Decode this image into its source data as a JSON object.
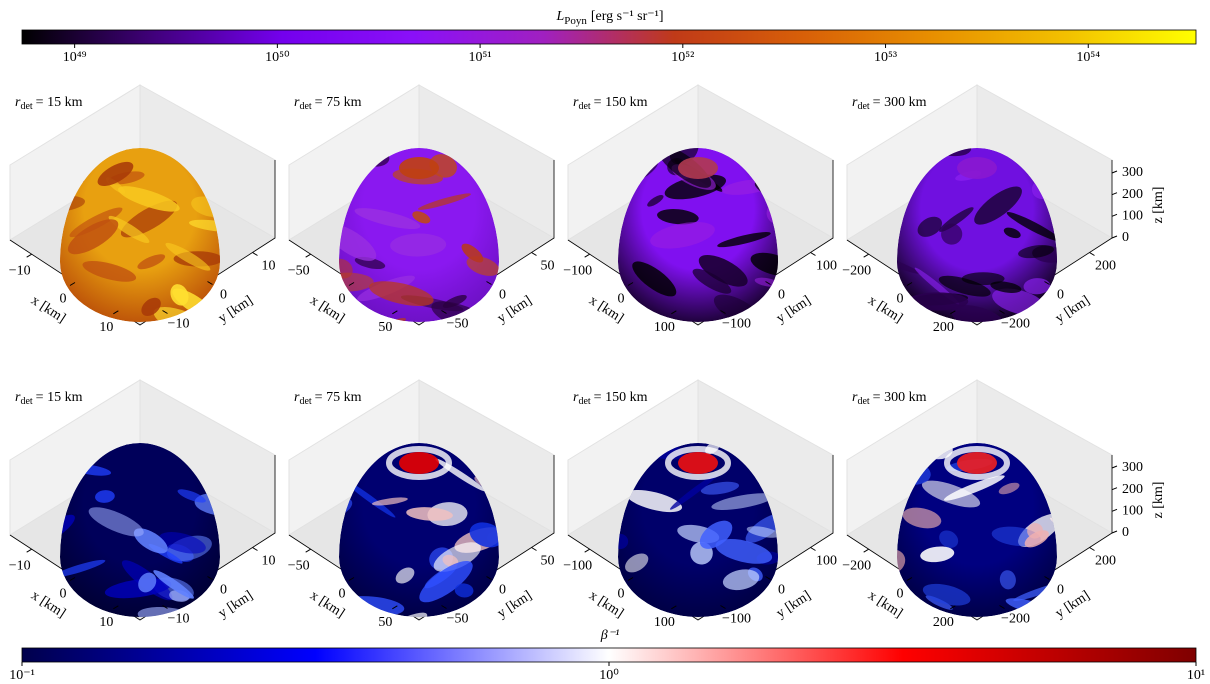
{
  "colorbars": [
    {
      "label": {
        "symbol": "L",
        "subscript": "Poyn",
        "unit": "[erg s⁻¹ sr⁻¹]"
      },
      "scale": "log",
      "lim": [
        5.5e+48,
        3.4e+54
      ],
      "ticks": [
        {
          "value": 1e+49,
          "label": "10⁴⁹"
        },
        {
          "value": 1e+50,
          "label": "10⁵⁰"
        },
        {
          "value": 1e+51,
          "label": "10⁵¹"
        },
        {
          "value": 1e+52,
          "label": "10⁵²"
        },
        {
          "value": 1e+53,
          "label": "10⁵³"
        },
        {
          "value": 1e+54,
          "label": "10⁵⁴"
        }
      ],
      "colors": [
        "#000000",
        "#40007a",
        "#7400ee",
        "#8a10f8",
        "#a020c0",
        "#c03a18",
        "#d86008",
        "#e89000",
        "#f2c000",
        "#ffff00"
      ]
    },
    {
      "label": "β⁻¹",
      "scale": "log",
      "lim": [
        0.1,
        10
      ],
      "ticks": [
        {
          "value": 0.1,
          "label": "10⁻¹"
        },
        {
          "value": 1,
          "label": "10⁰"
        },
        {
          "value": 10,
          "label": "10¹"
        }
      ],
      "colors": [
        "#00004c",
        "#0000ff",
        "#ffffff",
        "#ff0000",
        "#7f0000"
      ]
    }
  ],
  "axis_labels": {
    "x": "x [km]",
    "y": "y [km]",
    "z": "z [km]"
  },
  "panels": [
    {
      "title": {
        "symbol": "r",
        "subscript": "det",
        "text": "= 15 km"
      },
      "xlim": [
        -15,
        15
      ],
      "xticks": [
        {
          "value": -10,
          "label": "−10"
        },
        0,
        10
      ],
      "ylim": [
        -15,
        15
      ],
      "yticks": [
        {
          "value": -10,
          "label": "−10"
        },
        0,
        10
      ]
    },
    {
      "title": {
        "symbol": "r",
        "subscript": "det",
        "text": "= 75 km"
      },
      "xlim": [
        -75,
        75
      ],
      "xticks": [
        {
          "value": -50,
          "label": "−50"
        },
        0,
        50
      ],
      "ylim": [
        -75,
        75
      ],
      "yticks": [
        {
          "value": -50,
          "label": "−50"
        },
        0,
        50
      ]
    },
    {
      "title": {
        "symbol": "r",
        "subscript": "det",
        "text": "= 150 km"
      },
      "xlim": [
        -150,
        150
      ],
      "xticks": [
        {
          "value": -100,
          "label": "−100"
        },
        0,
        100
      ],
      "ylim": [
        -150,
        150
      ],
      "yticks": [
        {
          "value": -100,
          "label": "−100"
        },
        0,
        100
      ]
    },
    {
      "title": {
        "symbol": "r",
        "subscript": "det",
        "text": "= 300 km"
      },
      "xlim": [
        -300,
        300
      ],
      "xticks": [
        {
          "value": -200,
          "label": "−200"
        },
        0,
        200
      ],
      "ylim": [
        -300,
        300
      ],
      "yticks": [
        {
          "value": -200,
          "label": "−200"
        },
        0,
        200
      ],
      "zlim": [
        0,
        300
      ],
      "zticks": [
        0,
        100,
        200,
        300
      ]
    }
  ]
}
